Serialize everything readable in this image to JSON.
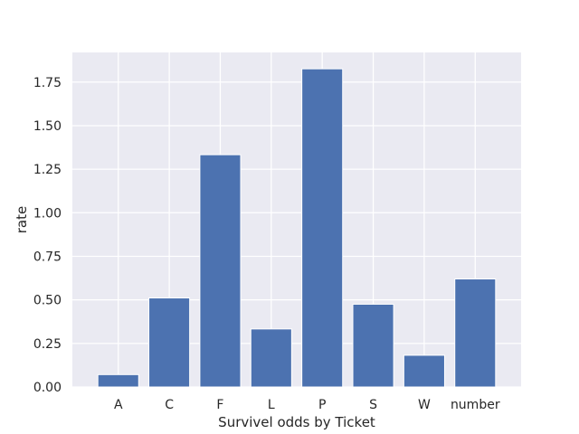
{
  "chart_data": {
    "type": "bar",
    "categories": [
      "A",
      "C",
      "F",
      "L",
      "P",
      "S",
      "W",
      "number"
    ],
    "values": [
      0.071,
      0.511,
      1.333,
      0.333,
      1.826,
      0.475,
      0.182,
      0.62
    ],
    "title": "",
    "xlabel": "Survivel odds by Ticket",
    "ylabel": "rate",
    "ylim": [
      0,
      1.92
    ],
    "yticks": [
      0.0,
      0.25,
      0.5,
      0.75,
      1.0,
      1.25,
      1.5,
      1.75
    ],
    "ytick_labels": [
      "0.00",
      "0.25",
      "0.50",
      "0.75",
      "1.00",
      "1.25",
      "1.50",
      "1.75"
    ],
    "grid": true,
    "bar_color": "#4c72b0",
    "background_color": "#eaeaf2"
  }
}
